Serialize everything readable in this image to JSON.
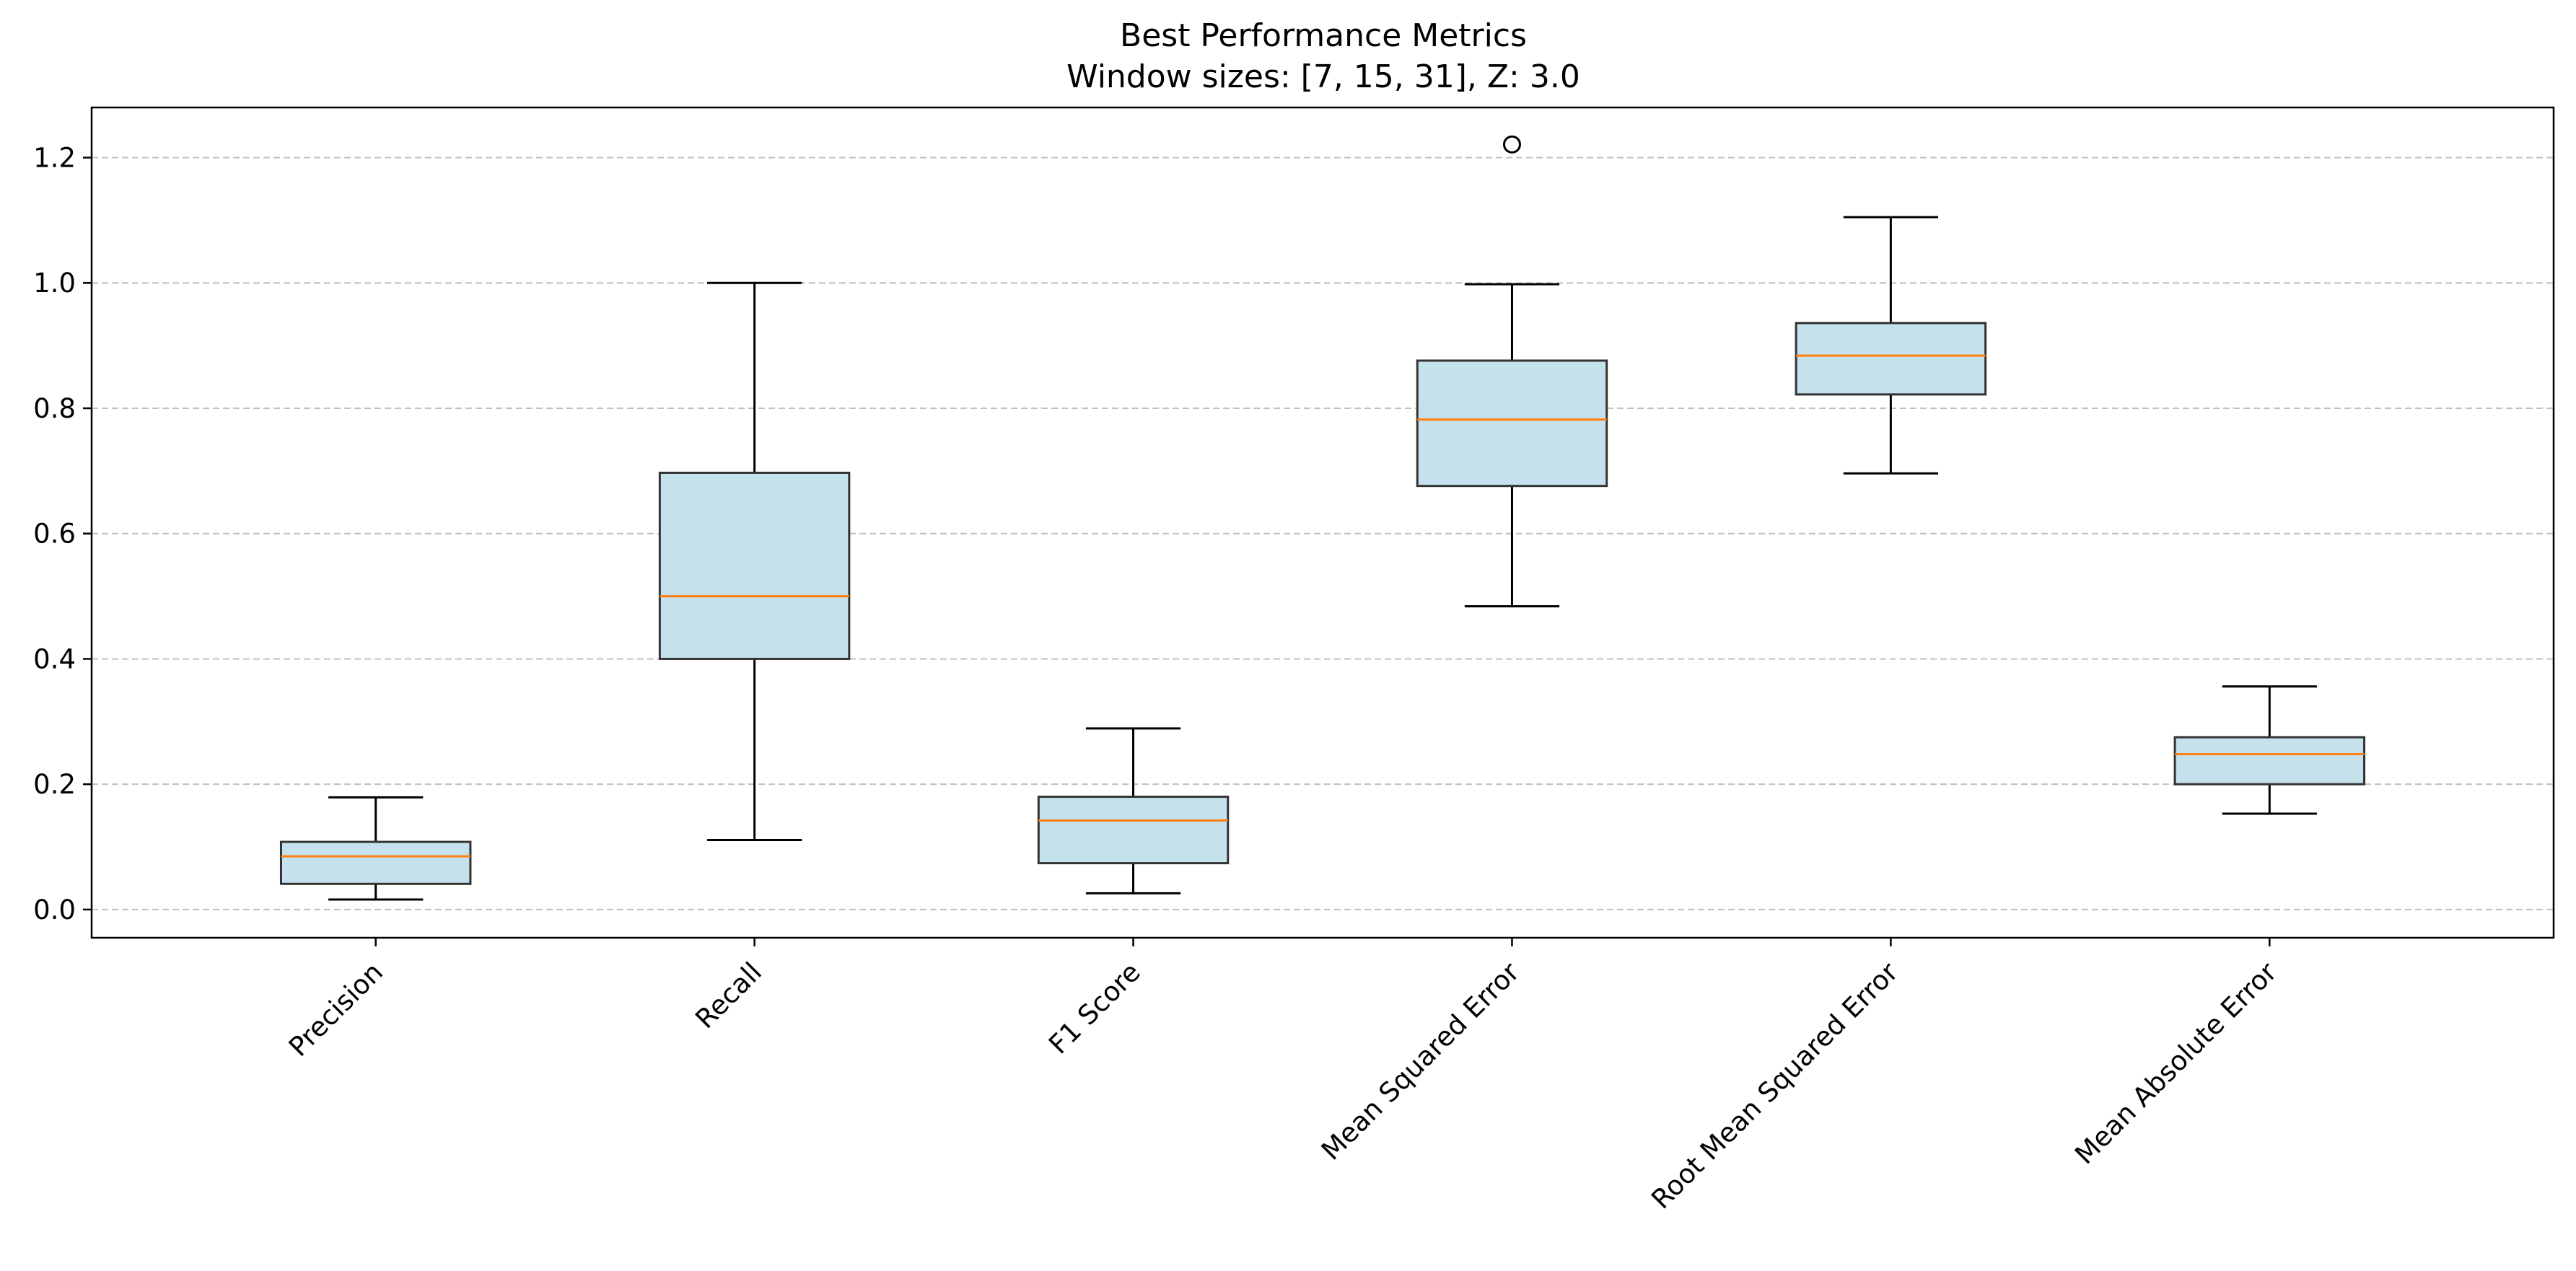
{
  "chart_data": {
    "type": "box",
    "title": "Best Performance Metrics",
    "subtitle": "Window sizes: [7, 15, 31], Z: 3.0",
    "xlabel": "",
    "ylabel": "",
    "ylim": [
      -0.045,
      1.28
    ],
    "yticks": [
      0.0,
      0.2,
      0.4,
      0.6,
      0.8,
      1.0,
      1.2
    ],
    "ytick_labels": [
      "0.0",
      "0.2",
      "0.4",
      "0.6",
      "0.8",
      "1.0",
      "1.2"
    ],
    "grid": "horizontal dashed",
    "categories": [
      "Precision",
      "Recall",
      "F1 Score",
      "Mean Squared Error",
      "Root Mean Squared Error",
      "Mean Absolute Error"
    ],
    "boxes": [
      {
        "label": "Precision",
        "whisker_low": 0.016,
        "q1": 0.041,
        "median": 0.085,
        "q3": 0.108,
        "whisker_high": 0.179,
        "outliers": []
      },
      {
        "label": "Recall",
        "whisker_low": 0.111,
        "q1": 0.4,
        "median": 0.5,
        "q3": 0.697,
        "whisker_high": 1.0,
        "outliers": []
      },
      {
        "label": "F1 Score",
        "whisker_low": 0.026,
        "q1": 0.074,
        "median": 0.142,
        "q3": 0.18,
        "whisker_high": 0.289,
        "outliers": []
      },
      {
        "label": "Mean Squared Error",
        "whisker_low": 0.484,
        "q1": 0.676,
        "median": 0.782,
        "q3": 0.876,
        "whisker_high": 0.998,
        "outliers": [
          1.221
        ]
      },
      {
        "label": "Root Mean Squared Error",
        "whisker_low": 0.696,
        "q1": 0.822,
        "median": 0.884,
        "q3": 0.936,
        "whisker_high": 1.105,
        "outliers": []
      },
      {
        "label": "Mean Absolute Error",
        "whisker_low": 0.153,
        "q1": 0.2,
        "median": 0.248,
        "q3": 0.275,
        "whisker_high": 0.356,
        "outliers": []
      }
    ],
    "colors": {
      "box_fill": "#c5e2ec",
      "box_edge": "#333333",
      "median": "#ff7f0e",
      "whisker": "#000000",
      "grid": "#c0c0c0"
    }
  }
}
